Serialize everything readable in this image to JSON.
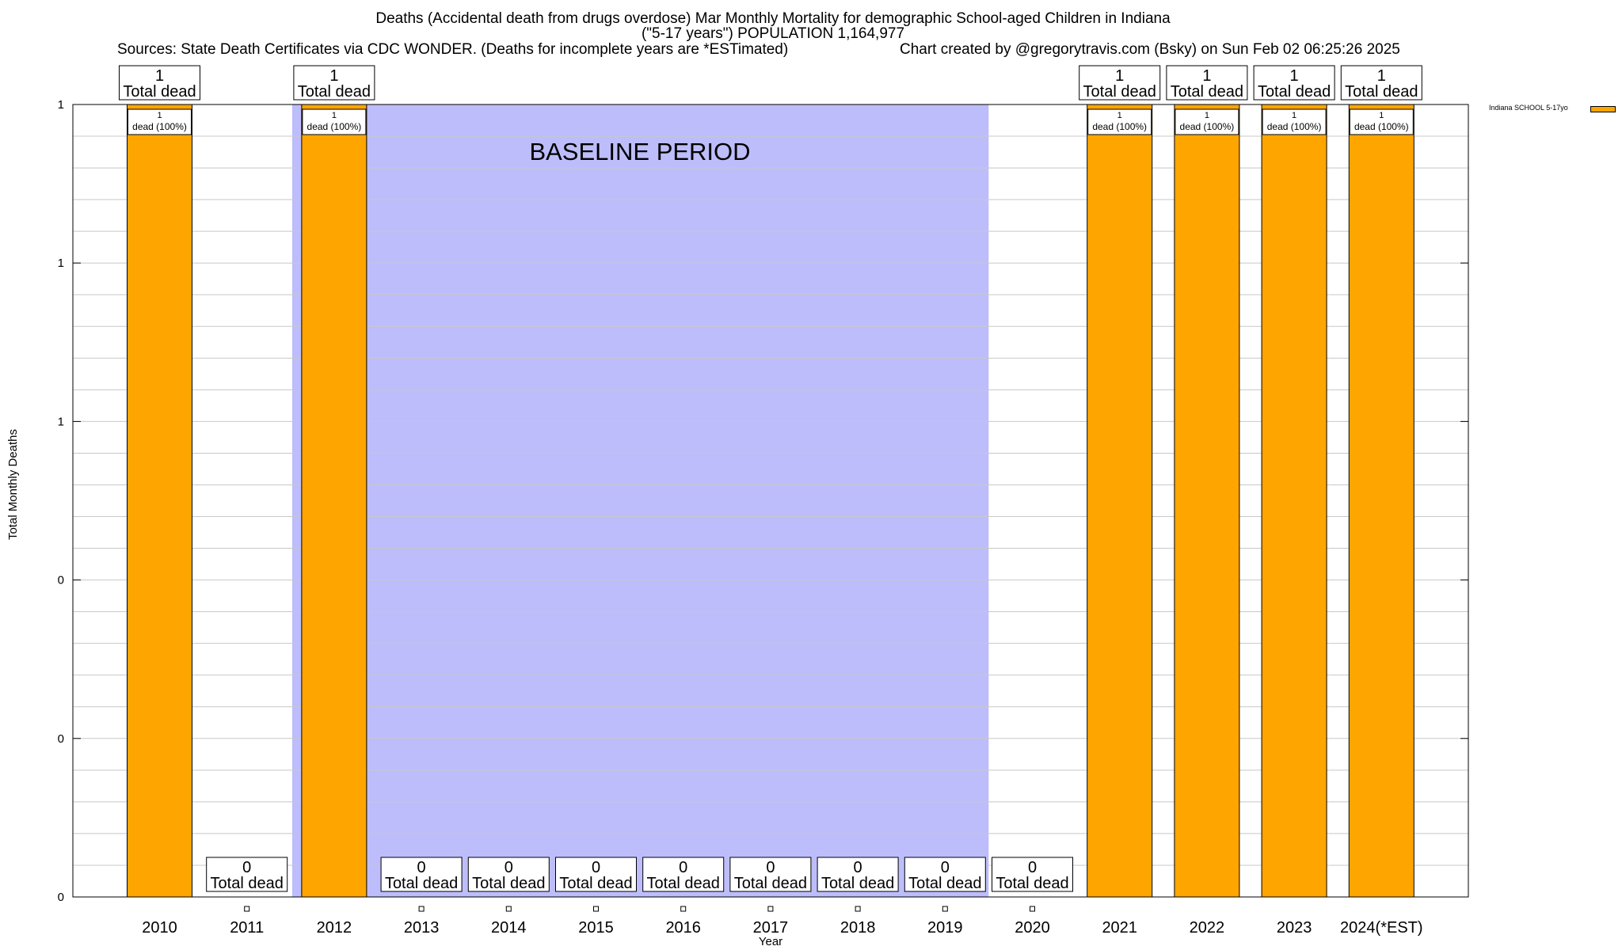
{
  "header": {
    "title_line1": "Deaths (Accidental death from drugs overdose) Mar Monthly Mortality for demographic School-aged Children in Indiana",
    "title_line2": "(\"5-17 years\") POPULATION 1,164,977",
    "sources": "Sources: State Death Certificates via CDC WONDER. (Deaths for incomplete years are *ESTimated)",
    "credit": "Chart created by @gregorytravis.com (Bsky) on Sun Feb 02 06:25:26 2025"
  },
  "chart_data": {
    "type": "bar",
    "title": "Deaths (Accidental death from drugs overdose) Mar Monthly Mortality for demographic School-aged Children in Indiana",
    "xlabel": "Year",
    "ylabel": "Total Monthly Deaths",
    "ylim": [
      0,
      1
    ],
    "ytick_labels": [
      "0",
      "0",
      "0",
      "1",
      "1",
      "1"
    ],
    "grid": true,
    "legend_position": "top-right",
    "categories": [
      "2010",
      "2011",
      "2012",
      "2013",
      "2014",
      "2015",
      "2016",
      "2017",
      "2018",
      "2019",
      "2020",
      "2021",
      "2022",
      "2023",
      "2024(*EST)"
    ],
    "series": [
      {
        "name": "Indiana SCHOOL 5-17yo",
        "color": "#ffa500",
        "values": [
          1,
          0,
          1,
          0,
          0,
          0,
          0,
          0,
          0,
          0,
          0,
          1,
          1,
          1,
          1
        ]
      }
    ],
    "total_labels": [
      "1",
      "0",
      "1",
      "0",
      "0",
      "0",
      "0",
      "0",
      "0",
      "0",
      "0",
      "1",
      "1",
      "1",
      "1"
    ],
    "total_suffix": "Total dead",
    "inner_count": "1",
    "inner_label": "dead (100%)",
    "baseline": {
      "label": "BASELINE PERIOD",
      "start_category": "2012",
      "end_category": "2019",
      "color": "#bdbdfb"
    }
  }
}
